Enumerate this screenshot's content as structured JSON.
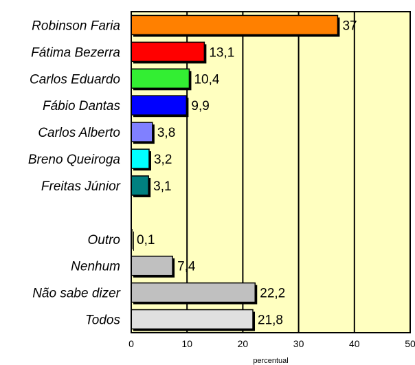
{
  "chart_data": {
    "type": "bar",
    "orientation": "horizontal",
    "categories": [
      "Robinson Faria",
      "Fátima Bezerra",
      "Carlos Eduardo",
      "Fábio Dantas",
      "Carlos Alberto",
      "Breno Queiroga",
      "Freitas Júnior",
      "",
      "Outro",
      "Nenhum",
      "Não sabe dizer",
      "Todos"
    ],
    "values": [
      37,
      13.1,
      10.4,
      9.9,
      3.8,
      3.2,
      3.1,
      null,
      0.1,
      7.4,
      22.2,
      21.8
    ],
    "value_labels": [
      "37",
      "13,1",
      "10,4",
      "9,9",
      "3,8",
      "3,2",
      "3,1",
      "",
      "0,1",
      "7,4",
      "22,2",
      "21,8"
    ],
    "colors": [
      "#ff8000",
      "#ff0000",
      "#33ee33",
      "#0000ff",
      "#8080ff",
      "#00ffff",
      "#008080",
      "",
      "#c0c0c0",
      "#c0c0c0",
      "#c0c0c0",
      "#e0e0e0"
    ],
    "xlim": [
      0,
      50
    ],
    "xticks": [
      0,
      10,
      20,
      30,
      40,
      50
    ],
    "xlabel": "percentual",
    "plot_background": "#ffffc0",
    "grid": "vertical"
  }
}
